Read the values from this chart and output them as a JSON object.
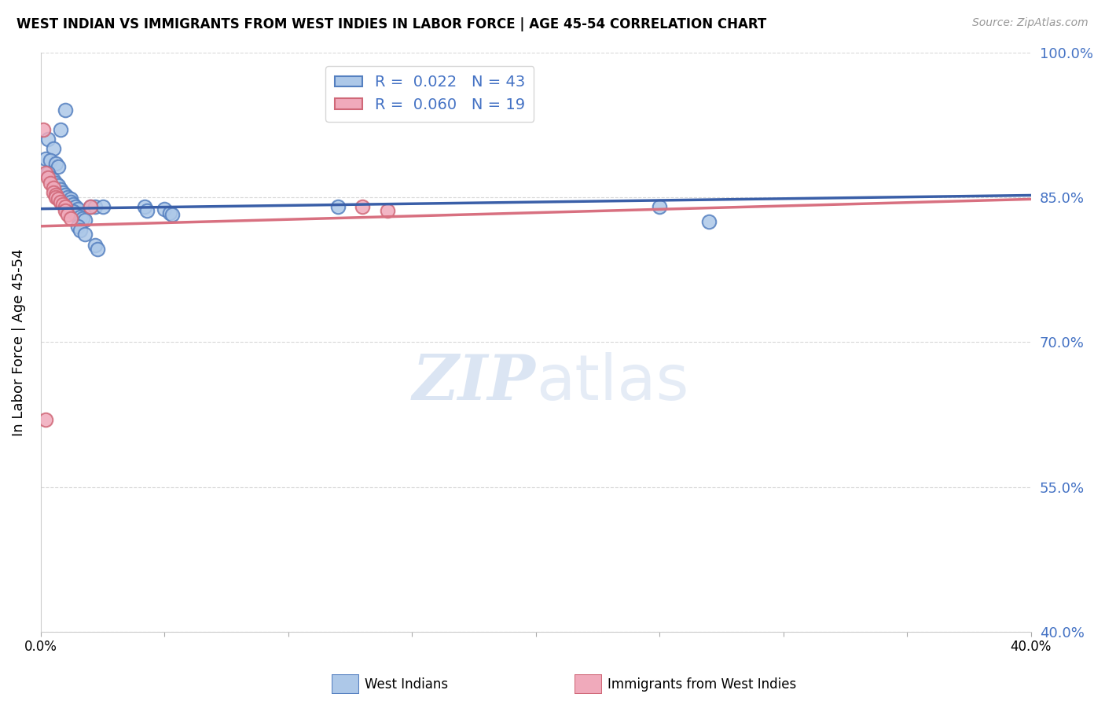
{
  "title": "WEST INDIAN VS IMMIGRANTS FROM WEST INDIES IN LABOR FORCE | AGE 45-54 CORRELATION CHART",
  "source": "Source: ZipAtlas.com",
  "ylabel": "In Labor Force | Age 45-54",
  "blue_label": "West Indians",
  "pink_label": "Immigrants from West Indies",
  "blue_R": 0.022,
  "blue_N": 43,
  "pink_R": 0.06,
  "pink_N": 19,
  "xlim": [
    0.0,
    0.4
  ],
  "ylim": [
    0.4,
    1.0
  ],
  "yticks": [
    0.4,
    0.55,
    0.7,
    0.85,
    1.0
  ],
  "ytick_labels": [
    "40.0%",
    "55.0%",
    "70.0%",
    "85.0%",
    "100.0%"
  ],
  "xticks": [
    0.0,
    0.05,
    0.1,
    0.15,
    0.2,
    0.25,
    0.3,
    0.35,
    0.4
  ],
  "xtick_labels": [
    "0.0%",
    "",
    "",
    "",
    "",
    "",
    "",
    "",
    "40.0%"
  ],
  "blue_color": "#adc8e8",
  "blue_edge_color": "#5580c0",
  "pink_color": "#f0aabb",
  "pink_edge_color": "#d06878",
  "blue_line_color": "#3a5fa8",
  "pink_line_color": "#d87080",
  "watermark_color": "#ccdaee",
  "grid_color": "#d8d8d8",
  "right_axis_color": "#4472c4",
  "blue_x": [
    0.01,
    0.008,
    0.003,
    0.005,
    0.002,
    0.004,
    0.006,
    0.007,
    0.003,
    0.004,
    0.005,
    0.006,
    0.007,
    0.008,
    0.009,
    0.01,
    0.011,
    0.012,
    0.012,
    0.013,
    0.014,
    0.015,
    0.013,
    0.014,
    0.016,
    0.017,
    0.018,
    0.015,
    0.016,
    0.018,
    0.02,
    0.022,
    0.022,
    0.023,
    0.025,
    0.042,
    0.043,
    0.05,
    0.052,
    0.053,
    0.12,
    0.25,
    0.27
  ],
  "blue_y": [
    0.94,
    0.92,
    0.91,
    0.9,
    0.89,
    0.888,
    0.885,
    0.882,
    0.875,
    0.87,
    0.868,
    0.865,
    0.862,
    0.858,
    0.855,
    0.852,
    0.85,
    0.848,
    0.845,
    0.843,
    0.84,
    0.838,
    0.835,
    0.832,
    0.83,
    0.828,
    0.826,
    0.82,
    0.816,
    0.812,
    0.84,
    0.84,
    0.8,
    0.796,
    0.84,
    0.84,
    0.836,
    0.838,
    0.834,
    0.832,
    0.84,
    0.84,
    0.825
  ],
  "pink_x": [
    0.001,
    0.002,
    0.003,
    0.004,
    0.005,
    0.005,
    0.006,
    0.006,
    0.007,
    0.008,
    0.009,
    0.01,
    0.01,
    0.011,
    0.012,
    0.02,
    0.13,
    0.14,
    0.002
  ],
  "pink_y": [
    0.92,
    0.875,
    0.87,
    0.865,
    0.86,
    0.855,
    0.852,
    0.85,
    0.848,
    0.845,
    0.843,
    0.84,
    0.836,
    0.832,
    0.828,
    0.84,
    0.84,
    0.836,
    0.62
  ],
  "blue_line_x0": 0.0,
  "blue_line_y0": 0.838,
  "blue_line_x1": 0.4,
  "blue_line_y1": 0.852,
  "pink_line_x0": 0.0,
  "pink_line_y0": 0.82,
  "pink_line_x1": 0.4,
  "pink_line_y1": 0.848
}
